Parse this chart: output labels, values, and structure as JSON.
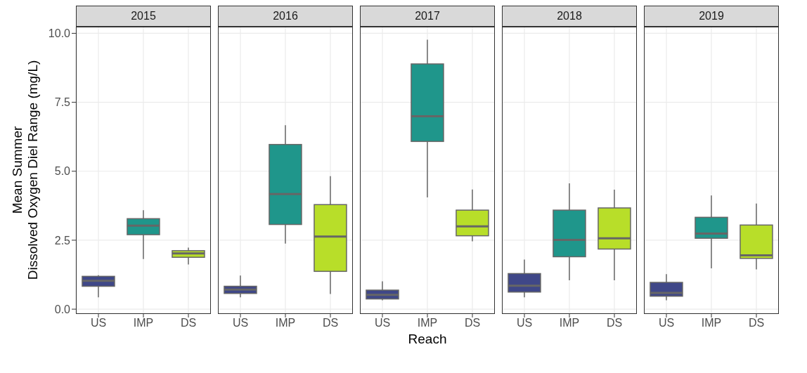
{
  "chart_data": [
    {
      "type": "box",
      "title": "2015",
      "ylabel": "Mean Summer\nDissolved Oxygen Diel Range (mg/L)",
      "categories": [
        "US",
        "IMP",
        "DS"
      ],
      "colors": [
        "#3f4788",
        "#1f968b",
        "#b8de29"
      ],
      "ylim": [
        -0.15,
        10.24
      ],
      "yticks": [
        {
          "value": 0,
          "label": "0.0"
        },
        {
          "value": 2.5,
          "label": "2.5"
        },
        {
          "value": 5,
          "label": "5.0"
        },
        {
          "value": 7.5,
          "label": "7.5"
        },
        {
          "value": 10,
          "label": "10.0"
        }
      ],
      "grid": true,
      "boxes": [
        {
          "low": 0.43,
          "q1": 0.83,
          "median": 1.03,
          "q3": 1.19,
          "high": 1.23
        },
        {
          "low": 1.82,
          "q1": 2.7,
          "median": 3.03,
          "q3": 3.28,
          "high": 3.59
        },
        {
          "low": 1.62,
          "q1": 1.88,
          "median": 2.02,
          "q3": 2.12,
          "high": 2.23
        }
      ]
    },
    {
      "type": "box",
      "title": "2016",
      "categories": [
        "US",
        "IMP",
        "DS"
      ],
      "colors": [
        "#3f4788",
        "#1f968b",
        "#b8de29"
      ],
      "ylim": [
        -0.15,
        10.24
      ],
      "yticks": [
        0,
        2.5,
        5,
        7.5,
        10
      ],
      "grid": true,
      "tick_labels": "x",
      "boxes": [
        {
          "low": 0.43,
          "q1": 0.57,
          "median": 0.71,
          "q3": 0.83,
          "high": 1.22
        },
        {
          "low": 2.38,
          "q1": 3.07,
          "median": 4.17,
          "q3": 5.97,
          "high": 6.67
        },
        {
          "low": 0.55,
          "q1": 1.37,
          "median": 2.63,
          "q3": 3.79,
          "high": 4.82
        }
      ]
    },
    {
      "type": "box",
      "title": "2017",
      "xlabel": "Reach",
      "categories": [
        "US",
        "IMP",
        "DS"
      ],
      "colors": [
        "#3f4788",
        "#1f968b",
        "#b8de29"
      ],
      "ylim": [
        -0.15,
        10.24
      ],
      "yticks": [
        0,
        2.5,
        5,
        7.5,
        10
      ],
      "grid": true,
      "tick_labels": "x",
      "boxes": [
        {
          "low": 0.32,
          "q1": 0.37,
          "median": 0.52,
          "q3": 0.69,
          "high": 1.01
        },
        {
          "low": 4.05,
          "q1": 6.08,
          "median": 6.99,
          "q3": 8.89,
          "high": 9.77
        },
        {
          "low": 2.46,
          "q1": 2.66,
          "median": 3.0,
          "q3": 3.59,
          "high": 4.34
        }
      ]
    },
    {
      "type": "box",
      "title": "2018",
      "categories": [
        "US",
        "IMP",
        "DS"
      ],
      "colors": [
        "#3f4788",
        "#1f968b",
        "#b8de29"
      ],
      "ylim": [
        -0.15,
        10.24
      ],
      "yticks": [
        0,
        2.5,
        5,
        7.5,
        10
      ],
      "grid": true,
      "tick_labels": "x",
      "boxes": [
        {
          "low": 0.43,
          "q1": 0.62,
          "median": 0.85,
          "q3": 1.29,
          "high": 1.8
        },
        {
          "low": 1.05,
          "q1": 1.9,
          "median": 2.51,
          "q3": 3.59,
          "high": 4.56
        },
        {
          "low": 1.05,
          "q1": 2.18,
          "median": 2.57,
          "q3": 3.67,
          "high": 4.33
        }
      ]
    },
    {
      "type": "box",
      "title": "2019",
      "categories": [
        "US",
        "IMP",
        "DS"
      ],
      "colors": [
        "#3f4788",
        "#1f968b",
        "#b8de29"
      ],
      "ylim": [
        -0.15,
        10.24
      ],
      "yticks": [
        0,
        2.5,
        5,
        7.5,
        10
      ],
      "grid": true,
      "tick_labels": "x",
      "boxes": [
        {
          "low": 0.32,
          "q1": 0.47,
          "median": 0.59,
          "q3": 0.97,
          "high": 1.27
        },
        {
          "low": 1.48,
          "q1": 2.57,
          "median": 2.74,
          "q3": 3.33,
          "high": 4.12
        },
        {
          "low": 1.44,
          "q1": 1.84,
          "median": 1.95,
          "q3": 3.05,
          "high": 3.83
        }
      ]
    }
  ]
}
